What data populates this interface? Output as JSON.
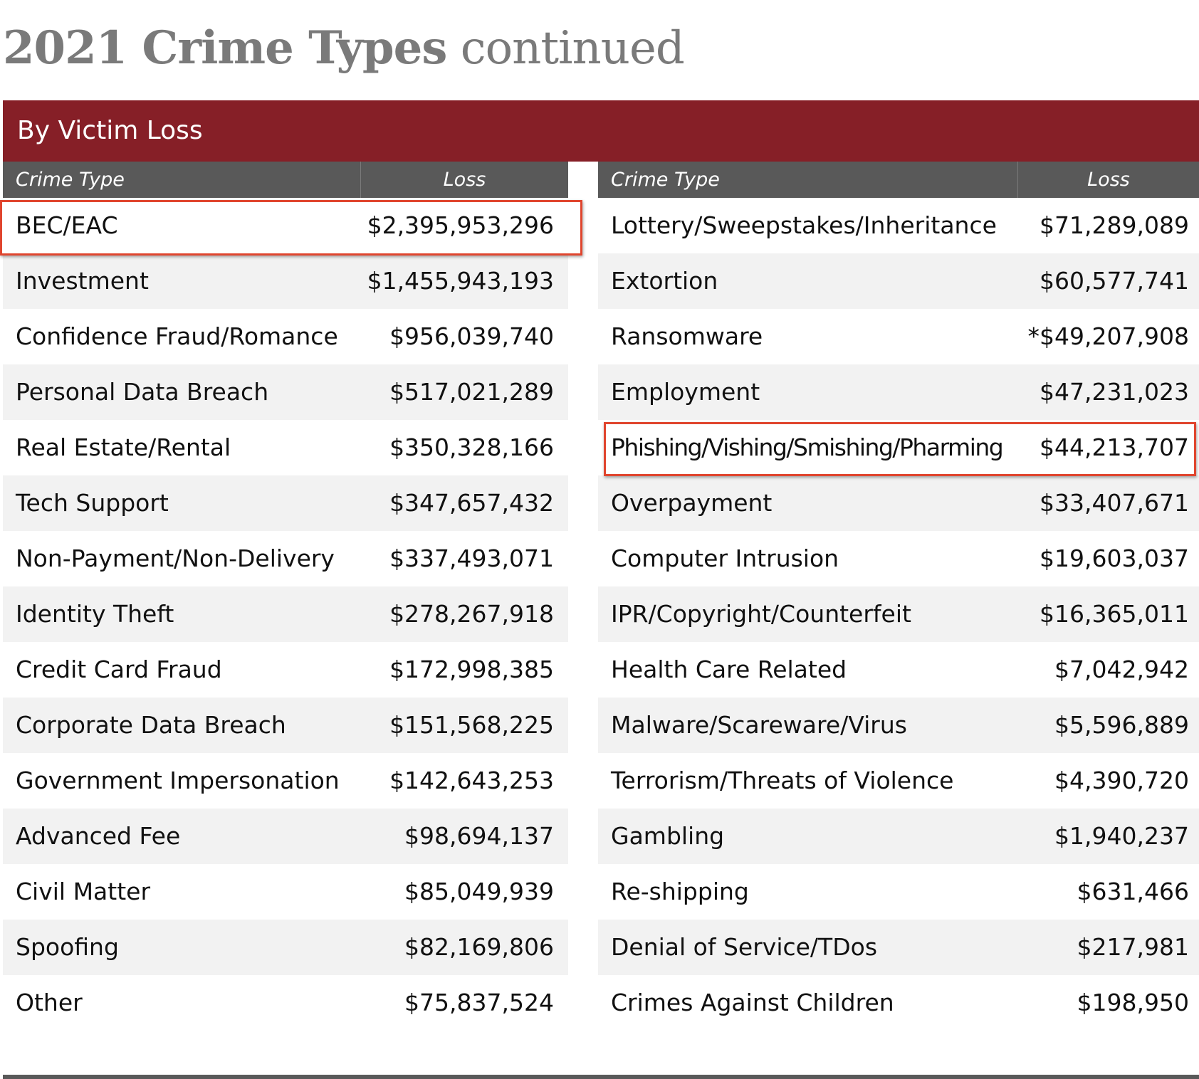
{
  "page": {
    "title_bold": "2021 Crime Types",
    "title_light": "continued"
  },
  "banner": {
    "label": "By Victim Loss"
  },
  "table": {
    "header": {
      "type_label": "Crime Type",
      "loss_label": "Loss"
    },
    "left": [
      {
        "type": "BEC/EAC",
        "loss": "$2,395,953,296"
      },
      {
        "type": "Investment",
        "loss": "$1,455,943,193"
      },
      {
        "type": "Confidence Fraud/Romance",
        "loss": "$956,039,740"
      },
      {
        "type": "Personal Data Breach",
        "loss": "$517,021,289"
      },
      {
        "type": "Real Estate/Rental",
        "loss": "$350,328,166"
      },
      {
        "type": "Tech Support",
        "loss": "$347,657,432"
      },
      {
        "type": "Non-Payment/Non-Delivery",
        "loss": "$337,493,071"
      },
      {
        "type": "Identity Theft",
        "loss": "$278,267,918"
      },
      {
        "type": "Credit Card Fraud",
        "loss": "$172,998,385"
      },
      {
        "type": "Corporate Data Breach",
        "loss": "$151,568,225"
      },
      {
        "type": "Government Impersonation",
        "loss": "$142,643,253"
      },
      {
        "type": "Advanced Fee",
        "loss": "$98,694,137"
      },
      {
        "type": "Civil Matter",
        "loss": "$85,049,939"
      },
      {
        "type": "Spoofing",
        "loss": "$82,169,806"
      },
      {
        "type": "Other",
        "loss": "$75,837,524"
      }
    ],
    "right": [
      {
        "type": "Lottery/Sweepstakes/Inheritance",
        "loss": "$71,289,089"
      },
      {
        "type": "Extortion",
        "loss": "$60,577,741"
      },
      {
        "type": "Ransomware",
        "loss": "*$49,207,908"
      },
      {
        "type": "Employment",
        "loss": "$47,231,023"
      },
      {
        "type": "Phishing/Vishing/Smishing/Pharming",
        "loss": "$44,213,707"
      },
      {
        "type": "Overpayment",
        "loss": "$33,407,671"
      },
      {
        "type": "Computer Intrusion",
        "loss": "$19,603,037"
      },
      {
        "type": "IPR/Copyright/Counterfeit",
        "loss": "$16,365,011"
      },
      {
        "type": "Health Care Related",
        "loss": "$7,042,942"
      },
      {
        "type": "Malware/Scareware/Virus",
        "loss": "$5,596,889"
      },
      {
        "type": "Terrorism/Threats of Violence",
        "loss": "$4,390,720"
      },
      {
        "type": "Gambling",
        "loss": "$1,940,237"
      },
      {
        "type": "Re-shipping",
        "loss": "$631,466"
      },
      {
        "type": "Denial of Service/TDos",
        "loss": "$217,981"
      },
      {
        "type": "Crimes Against Children",
        "loss": "$198,950"
      }
    ]
  },
  "colors": {
    "banner": "#861f27",
    "header": "#595959",
    "highlight": "#e0452e",
    "stripe": "#f2f2f2"
  }
}
